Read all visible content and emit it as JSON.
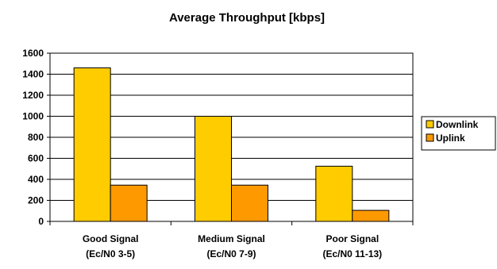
{
  "chart_data": {
    "type": "bar",
    "title": "Average Throughput [kbps]",
    "xlabel": "",
    "ylabel": "",
    "ylim": [
      0,
      1600
    ],
    "yticks": [
      0,
      200,
      400,
      600,
      800,
      1000,
      1200,
      1400,
      1600
    ],
    "grid": true,
    "legend_position": "right",
    "categories": [
      [
        "Good Signal",
        "(Ec/N0 3-5)"
      ],
      [
        "Medium Signal",
        "(Ec/N0 7-9)"
      ],
      [
        "Poor Signal",
        "(Ec/N0 11-13)"
      ]
    ],
    "series": [
      {
        "name": "Downlink",
        "color": "#ffcc00",
        "values": [
          1460,
          1000,
          525
        ]
      },
      {
        "name": "Uplink",
        "color": "#ff9900",
        "values": [
          345,
          345,
          105
        ]
      }
    ]
  }
}
